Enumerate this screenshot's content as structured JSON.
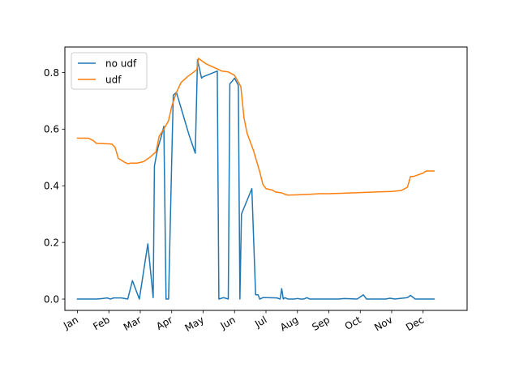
{
  "chart_data": {
    "type": "line",
    "title": "",
    "xlabel": "",
    "ylabel": "",
    "x_axis": {
      "type": "month",
      "ticks": [
        {
          "label": "Jan",
          "month": 1
        },
        {
          "label": "Feb",
          "month": 2
        },
        {
          "label": "Mar",
          "month": 3
        },
        {
          "label": "Apr",
          "month": 4
        },
        {
          "label": "May",
          "month": 5
        },
        {
          "label": "Jun",
          "month": 6
        },
        {
          "label": "Jul",
          "month": 7
        },
        {
          "label": "Aug",
          "month": 8
        },
        {
          "label": "Sep",
          "month": 9
        },
        {
          "label": "Oct",
          "month": 10
        },
        {
          "label": "Nov",
          "month": 11
        },
        {
          "label": "Dec",
          "month": 12
        }
      ],
      "range": [
        0.6,
        13.4
      ]
    },
    "y_axis": {
      "ticks": [
        {
          "label": "0.0",
          "value": 0.0
        },
        {
          "label": "0.2",
          "value": 0.2
        },
        {
          "label": "0.4",
          "value": 0.4
        },
        {
          "label": "0.6",
          "value": 0.6
        },
        {
          "label": "0.8",
          "value": 0.8
        }
      ],
      "range": [
        -0.04,
        0.89
      ]
    },
    "grid": false,
    "legend": {
      "placement": "top-left"
    },
    "series": [
      {
        "name": "no udf",
        "color": "#1f77b4",
        "points": [
          [
            1.0,
            0.0
          ],
          [
            1.3,
            0.0
          ],
          [
            1.6,
            0.0
          ],
          [
            1.8,
            0.002
          ],
          [
            1.95,
            0.004
          ],
          [
            2.05,
            0.0
          ],
          [
            2.15,
            0.004
          ],
          [
            2.4,
            0.004
          ],
          [
            2.6,
            0.0
          ],
          [
            2.75,
            0.065
          ],
          [
            2.97,
            0.0
          ],
          [
            3.24,
            0.195
          ],
          [
            3.41,
            0.005
          ],
          [
            3.45,
            0.47
          ],
          [
            3.55,
            0.53
          ],
          [
            3.67,
            0.575
          ],
          [
            3.75,
            0.61
          ],
          [
            3.82,
            0.0
          ],
          [
            3.9,
            0.0
          ],
          [
            4.0,
            0.49
          ],
          [
            4.05,
            0.72
          ],
          [
            4.15,
            0.73
          ],
          [
            4.55,
            0.58
          ],
          [
            4.75,
            0.515
          ],
          [
            4.82,
            0.845
          ],
          [
            4.95,
            0.78
          ],
          [
            5.0,
            0.785
          ],
          [
            5.45,
            0.805
          ],
          [
            5.5,
            0.0
          ],
          [
            5.65,
            0.005
          ],
          [
            5.8,
            0.0
          ],
          [
            5.85,
            0.76
          ],
          [
            5.93,
            0.77
          ],
          [
            6.0,
            0.78
          ],
          [
            6.12,
            0.755
          ],
          [
            6.17,
            0.0
          ],
          [
            6.22,
            0.3
          ],
          [
            6.55,
            0.39
          ],
          [
            6.67,
            0.015
          ],
          [
            6.75,
            0.015
          ],
          [
            6.8,
            0.0
          ],
          [
            6.9,
            0.005
          ],
          [
            7.0,
            0.005
          ],
          [
            7.35,
            0.004
          ],
          [
            7.45,
            0.0
          ],
          [
            7.5,
            0.037
          ],
          [
            7.55,
            0.0
          ],
          [
            7.6,
            0.005
          ],
          [
            7.7,
            0.0
          ],
          [
            7.9,
            0.0
          ],
          [
            8.0,
            0.002
          ],
          [
            8.1,
            0.0
          ],
          [
            8.2,
            0.0
          ],
          [
            8.3,
            0.005
          ],
          [
            8.4,
            0.0
          ],
          [
            9.0,
            0.0
          ],
          [
            9.3,
            0.0
          ],
          [
            9.5,
            0.002
          ],
          [
            9.9,
            0.0
          ],
          [
            10.1,
            0.015
          ],
          [
            10.2,
            0.0
          ],
          [
            10.5,
            0.0
          ],
          [
            10.8,
            0.0
          ],
          [
            10.95,
            0.003
          ],
          [
            11.1,
            0.0
          ],
          [
            11.5,
            0.005
          ],
          [
            11.6,
            0.013
          ],
          [
            11.75,
            0.0
          ],
          [
            12.0,
            0.0
          ],
          [
            12.35,
            0.0
          ]
        ]
      },
      {
        "name": "udf",
        "color": "#ff7f0e",
        "points": [
          [
            1.0,
            0.568
          ],
          [
            1.35,
            0.568
          ],
          [
            1.5,
            0.56
          ],
          [
            1.6,
            0.55
          ],
          [
            2.0,
            0.548
          ],
          [
            2.1,
            0.547
          ],
          [
            2.2,
            0.535
          ],
          [
            2.3,
            0.497
          ],
          [
            2.4,
            0.49
          ],
          [
            2.5,
            0.483
          ],
          [
            2.6,
            0.478
          ],
          [
            2.7,
            0.48
          ],
          [
            2.9,
            0.48
          ],
          [
            3.1,
            0.485
          ],
          [
            3.3,
            0.5
          ],
          [
            3.5,
            0.52
          ],
          [
            3.6,
            0.575
          ],
          [
            3.75,
            0.6
          ],
          [
            3.9,
            0.63
          ],
          [
            4.0,
            0.68
          ],
          [
            4.15,
            0.73
          ],
          [
            4.3,
            0.765
          ],
          [
            4.5,
            0.785
          ],
          [
            4.8,
            0.81
          ],
          [
            4.85,
            0.85
          ],
          [
            5.1,
            0.83
          ],
          [
            5.6,
            0.805
          ],
          [
            5.8,
            0.802
          ],
          [
            6.0,
            0.79
          ],
          [
            6.2,
            0.75
          ],
          [
            6.3,
            0.64
          ],
          [
            6.4,
            0.585
          ],
          [
            6.6,
            0.525
          ],
          [
            6.8,
            0.45
          ],
          [
            6.9,
            0.405
          ],
          [
            7.0,
            0.39
          ],
          [
            7.2,
            0.385
          ],
          [
            7.3,
            0.378
          ],
          [
            7.5,
            0.375
          ],
          [
            7.6,
            0.37
          ],
          [
            7.7,
            0.367
          ],
          [
            8.0,
            0.368
          ],
          [
            8.4,
            0.37
          ],
          [
            8.7,
            0.372
          ],
          [
            9.0,
            0.372
          ],
          [
            9.5,
            0.374
          ],
          [
            10.0,
            0.376
          ],
          [
            10.5,
            0.378
          ],
          [
            11.0,
            0.38
          ],
          [
            11.3,
            0.383
          ],
          [
            11.5,
            0.395
          ],
          [
            11.6,
            0.433
          ],
          [
            11.7,
            0.433
          ],
          [
            11.8,
            0.437
          ],
          [
            12.0,
            0.445
          ],
          [
            12.1,
            0.452
          ],
          [
            12.35,
            0.452
          ]
        ]
      }
    ]
  }
}
